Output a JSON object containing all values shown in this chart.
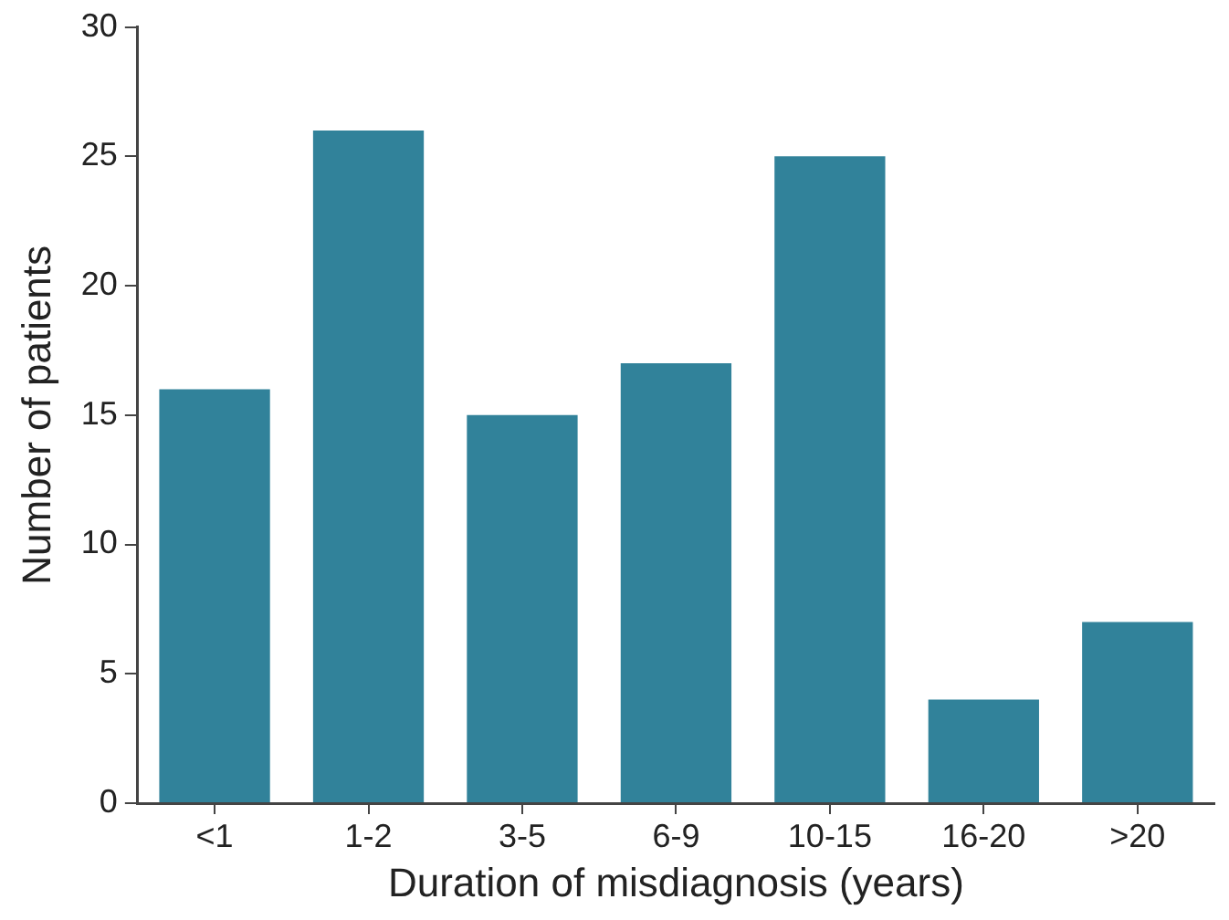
{
  "chart_data": {
    "type": "bar",
    "xlabel": "Duration of misdiagnosis (years)",
    "ylabel": "Number of patients",
    "categories": [
      "<1",
      "1-2",
      "3-5",
      "6-9",
      "10-15",
      "16-20",
      ">20"
    ],
    "values": [
      16,
      26,
      15,
      17,
      25,
      4,
      7
    ],
    "color": "#31829a",
    "ylim": [
      0,
      30
    ],
    "yticks": [
      0,
      5,
      10,
      15,
      20,
      25,
      30
    ],
    "grid": false,
    "legend": false
  }
}
